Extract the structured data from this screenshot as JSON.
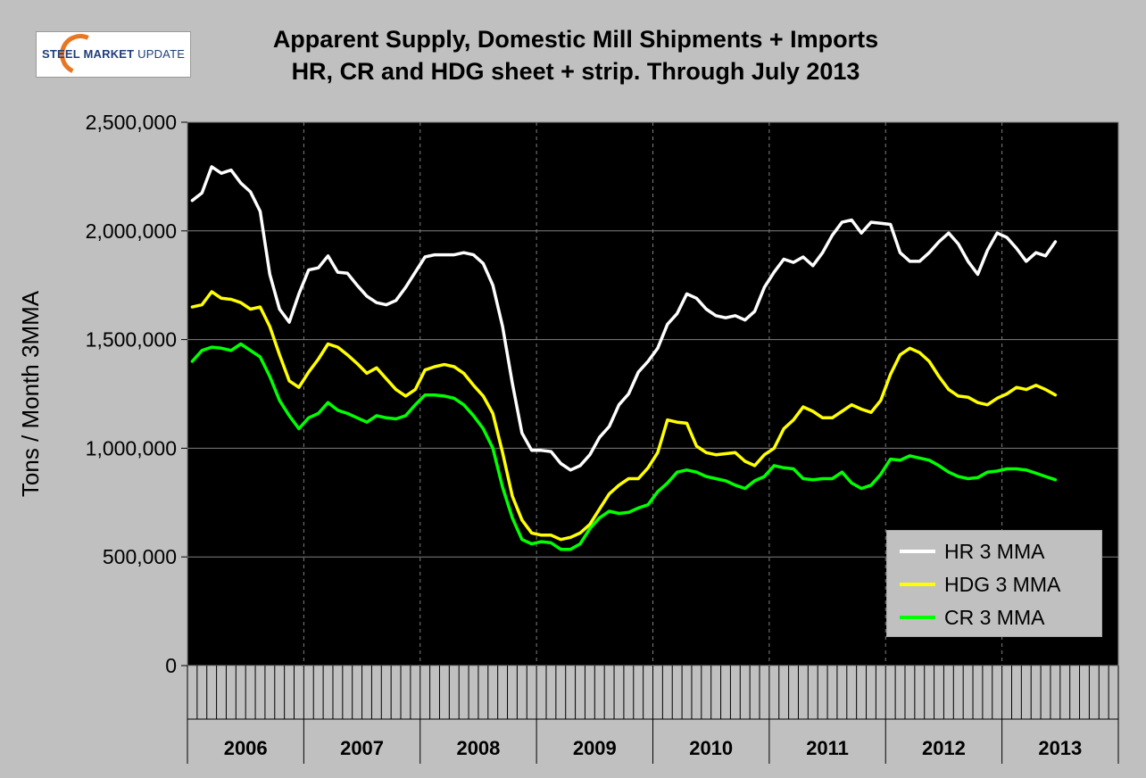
{
  "logo": {
    "brand": "STEEL",
    "rest": "MARKET",
    "light": "UPDATE",
    "accent": "#e87722",
    "color": "#1f3f7a"
  },
  "title": {
    "line1": "Apparent Supply, Domestic Mill Shipments + Imports",
    "line2": "HR, CR and HDG sheet + strip. Through July 2013"
  },
  "chart_data": {
    "type": "line",
    "title": "Apparent Supply, Domestic Mill Shipments + Imports HR, CR and HDG sheet + strip. Through July 2013",
    "ylabel": "Tons / Month 3MMA",
    "xlabel": "",
    "ylim": [
      0,
      2500000
    ],
    "yticks": [
      0,
      500000,
      1000000,
      1500000,
      2000000,
      2500000
    ],
    "ytick_labels": [
      "0",
      "500,000",
      "1,000,000",
      "1,500,000",
      "2,000,000",
      "2,500,000"
    ],
    "years": [
      "2006",
      "2007",
      "2008",
      "2009",
      "2010",
      "2011",
      "2012",
      "2013"
    ],
    "months_total": 96,
    "grid": true,
    "background": "#000000",
    "legend_position": "bottom-right",
    "series": [
      {
        "name": "HR 3 MMA",
        "color": "#ffffff",
        "values": [
          2140000,
          2175000,
          2295000,
          2265000,
          2280000,
          2220000,
          2180000,
          2090000,
          1800000,
          1640000,
          1580000,
          1710000,
          1820000,
          1830000,
          1885000,
          1810000,
          1805000,
          1750000,
          1700000,
          1670000,
          1660000,
          1680000,
          1740000,
          1810000,
          1880000,
          1890000,
          1890000,
          1890000,
          1900000,
          1890000,
          1850000,
          1750000,
          1560000,
          1300000,
          1070000,
          990000,
          990000,
          985000,
          930000,
          900000,
          920000,
          970000,
          1050000,
          1100000,
          1200000,
          1250000,
          1350000,
          1400000,
          1460000,
          1570000,
          1620000,
          1710000,
          1690000,
          1640000,
          1610000,
          1600000,
          1610000,
          1590000,
          1630000,
          1740000,
          1810000,
          1870000,
          1855000,
          1880000,
          1840000,
          1900000,
          1980000,
          2040000,
          2050000,
          1990000,
          2040000,
          2035000,
          2030000,
          1900000,
          1860000,
          1860000,
          1900000,
          1950000,
          1990000,
          1940000,
          1860000,
          1800000,
          1910000,
          1990000,
          1970000,
          1920000,
          1860000,
          1900000,
          1885000,
          1950000
        ]
      },
      {
        "name": "HDG 3 MMA",
        "color": "#ffff00",
        "values": [
          1650000,
          1660000,
          1720000,
          1690000,
          1685000,
          1670000,
          1640000,
          1650000,
          1560000,
          1430000,
          1310000,
          1280000,
          1350000,
          1410000,
          1480000,
          1465000,
          1430000,
          1390000,
          1345000,
          1370000,
          1320000,
          1270000,
          1240000,
          1270000,
          1360000,
          1375000,
          1385000,
          1375000,
          1345000,
          1290000,
          1240000,
          1160000,
          980000,
          780000,
          670000,
          610000,
          600000,
          600000,
          580000,
          590000,
          610000,
          650000,
          720000,
          790000,
          830000,
          860000,
          860000,
          910000,
          980000,
          1130000,
          1120000,
          1115000,
          1010000,
          980000,
          970000,
          975000,
          980000,
          940000,
          920000,
          970000,
          1000000,
          1090000,
          1130000,
          1190000,
          1170000,
          1140000,
          1140000,
          1170000,
          1200000,
          1180000,
          1165000,
          1220000,
          1340000,
          1430000,
          1460000,
          1440000,
          1400000,
          1330000,
          1270000,
          1240000,
          1235000,
          1210000,
          1200000,
          1230000,
          1250000,
          1280000,
          1270000,
          1290000,
          1270000,
          1245000
        ]
      },
      {
        "name": "CR 3 MMA",
        "color": "#00ff00",
        "values": [
          1400000,
          1450000,
          1465000,
          1460000,
          1450000,
          1480000,
          1450000,
          1420000,
          1330000,
          1220000,
          1150000,
          1090000,
          1140000,
          1160000,
          1210000,
          1175000,
          1160000,
          1140000,
          1120000,
          1150000,
          1140000,
          1135000,
          1150000,
          1200000,
          1245000,
          1245000,
          1240000,
          1230000,
          1200000,
          1150000,
          1090000,
          1000000,
          820000,
          680000,
          580000,
          560000,
          570000,
          565000,
          535000,
          535000,
          560000,
          630000,
          680000,
          710000,
          700000,
          705000,
          725000,
          740000,
          800000,
          840000,
          890000,
          900000,
          890000,
          870000,
          860000,
          850000,
          830000,
          815000,
          850000,
          870000,
          920000,
          910000,
          905000,
          860000,
          855000,
          860000,
          860000,
          890000,
          840000,
          815000,
          830000,
          880000,
          950000,
          945000,
          965000,
          955000,
          945000,
          920000,
          890000,
          870000,
          860000,
          865000,
          890000,
          895000,
          905000,
          905000,
          900000,
          885000,
          870000,
          855000
        ]
      }
    ]
  }
}
